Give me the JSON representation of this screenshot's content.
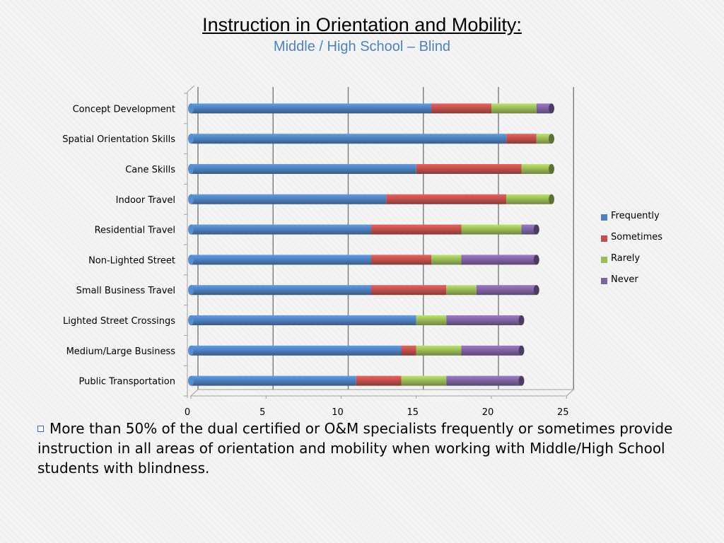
{
  "title": "Instruction in Orientation and Mobility:",
  "subtitle": "Middle / High School – Blind",
  "bullet": {
    "icon": "square-bullet-icon",
    "text": "More than 50% of the dual certified or O&M specialists frequently or sometimes provide instruction in all areas of orientation and mobility when working with Middle/High School students with blindness."
  },
  "chart_data": {
    "type": "bar",
    "orientation": "horizontal",
    "stacked": true,
    "categories": [
      "Concept Development",
      "Spatial Orientation Skills",
      "Cane Skills",
      "Indoor Travel",
      "Residential Travel",
      "Non-Lighted Street",
      "Small Business Travel",
      "Lighted Street Crossings",
      "Medium/Large Business",
      "Public Transportation"
    ],
    "series": [
      {
        "name": "Frequently",
        "color": "#4f81bd",
        "values": [
          16,
          21,
          15,
          13,
          12,
          12,
          12,
          15,
          14,
          11
        ]
      },
      {
        "name": "Sometimes",
        "color": "#c0504d",
        "values": [
          4,
          2,
          7,
          8,
          6,
          4,
          5,
          0,
          1,
          3
        ]
      },
      {
        "name": "Rarely",
        "color": "#9bbb59",
        "values": [
          3,
          1,
          2,
          3,
          4,
          2,
          2,
          2,
          3,
          3
        ]
      },
      {
        "name": "Never",
        "color": "#8064a2",
        "values": [
          1,
          0,
          0,
          0,
          1,
          5,
          4,
          5,
          4,
          5
        ]
      }
    ],
    "xticks": [
      "0",
      "5",
      "10",
      "15",
      "20",
      "25"
    ],
    "xlim": [
      0,
      25
    ],
    "grid": true,
    "legend": "right"
  }
}
